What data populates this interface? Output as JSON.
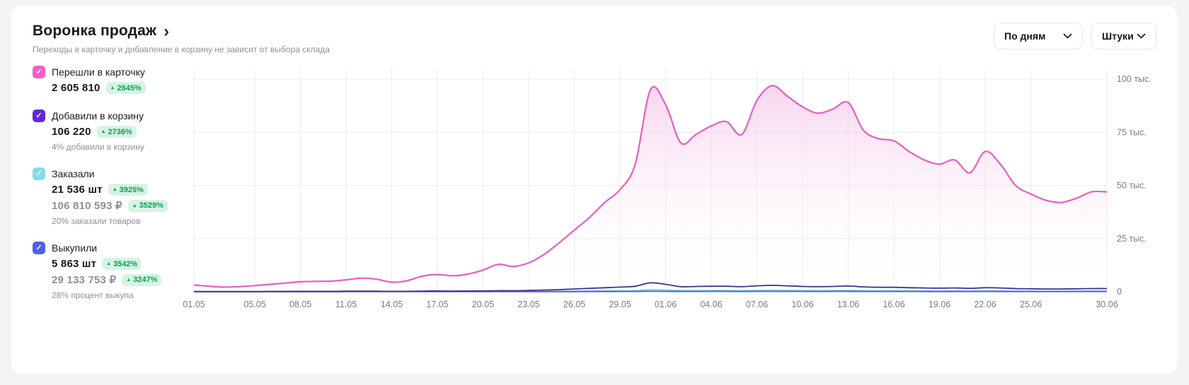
{
  "header": {
    "title": "Воронка продаж",
    "subtitle": "Переходы в карточку и добавление в корзину не зависит от выбора склада"
  },
  "controls": {
    "period_dropdown": "По дням",
    "units_dropdown": "Штуки"
  },
  "icons": {
    "chevron_right": "›",
    "trend_up": "▲",
    "check": "✓"
  },
  "colors": {
    "card_to_product": "#f25fc4",
    "add_to_cart": "#6128d9",
    "ordered": "#86dce6",
    "purchased": "#4e61ea",
    "badge_bg": "#d7f3e3",
    "badge_text": "#0aa05c"
  },
  "legend": {
    "items": [
      {
        "label": "Перешли в карточку",
        "value": "2 605 810",
        "badge": "2645%"
      },
      {
        "label": "Добавили в корзину",
        "value": "106 220",
        "badge": "2736%",
        "note": "4% добавили в корзину"
      },
      {
        "label": "Заказали",
        "value": "21 536 шт",
        "badge": "3925%",
        "value2": "106 810 593 ₽",
        "badge2": "3529%",
        "note": "20% заказали товаров"
      },
      {
        "label": "Выкупили",
        "value": "5 863 шт",
        "badge": "3542%",
        "value2": "29 133 753 ₽",
        "badge2": "3247%",
        "note": "28% процент выкупа"
      }
    ]
  },
  "chart_data": {
    "type": "area",
    "x_unit": "day",
    "x_start": "01.05",
    "x_end": "30.06",
    "x_tick_labels": [
      "01.05",
      "05.05",
      "08.05",
      "11.05",
      "14.05",
      "17.05",
      "20.05",
      "23.05",
      "26.05",
      "29.05",
      "01.06",
      "04.06",
      "07.06",
      "10.06",
      "13.06",
      "16.06",
      "19.06",
      "22.06",
      "25.06",
      "30.06"
    ],
    "x_tick_days": [
      0,
      4,
      7,
      10,
      13,
      16,
      19,
      22,
      25,
      28,
      31,
      34,
      37,
      40,
      43,
      46,
      49,
      52,
      55,
      60
    ],
    "y_ticks": [
      0,
      25,
      50,
      75,
      100
    ],
    "y_tick_labels": [
      "0",
      "25 тыс.",
      "50 тыс.",
      "75 тыс.",
      "100 тыс."
    ],
    "ylim": [
      0,
      105
    ],
    "unit": "тыс.",
    "grid": true,
    "legend_position": "left",
    "series": [
      {
        "name": "Перешли в карточку",
        "color": "#e95ebf",
        "area": "gradient",
        "values": [
          3.2,
          2.6,
          2.2,
          2.4,
          2.9,
          3.5,
          4.1,
          4.7,
          4.9,
          5.0,
          5.6,
          6.4,
          5.9,
          4.5,
          5.2,
          7.3,
          8.1,
          7.5,
          8.3,
          10.2,
          12.9,
          11.9,
          13.6,
          17.5,
          23,
          29,
          35,
          42,
          48,
          60,
          95,
          88,
          70,
          74,
          78,
          80,
          74,
          90,
          97,
          92,
          87,
          84,
          86,
          89,
          76,
          72,
          71,
          66,
          62,
          60,
          62,
          56,
          66,
          60,
          50,
          46,
          43,
          42,
          44,
          47,
          47
        ]
      },
      {
        "name": "Добавили в корзину",
        "color": "#433090",
        "area": "none",
        "values": [
          0.1,
          0.1,
          0.1,
          0.1,
          0.1,
          0.15,
          0.15,
          0.2,
          0.2,
          0.2,
          0.25,
          0.25,
          0.25,
          0.2,
          0.2,
          0.3,
          0.35,
          0.3,
          0.35,
          0.4,
          0.5,
          0.5,
          0.6,
          0.8,
          1.0,
          1.3,
          1.6,
          1.9,
          2.2,
          2.6,
          4.2,
          3.5,
          2.4,
          2.5,
          2.6,
          2.6,
          2.4,
          2.8,
          3.0,
          2.8,
          2.5,
          2.4,
          2.5,
          2.7,
          2.3,
          2.1,
          2.1,
          1.9,
          1.8,
          1.7,
          1.8,
          1.6,
          1.9,
          1.8,
          1.5,
          1.4,
          1.3,
          1.3,
          1.4,
          1.5,
          1.5
        ]
      },
      {
        "name": "Заказали",
        "color": "#62cbdc",
        "area": "solid",
        "fill": "#bce9f1",
        "values": [
          0.03,
          0.03,
          0.03,
          0.03,
          0.03,
          0.04,
          0.04,
          0.05,
          0.05,
          0.05,
          0.06,
          0.06,
          0.06,
          0.05,
          0.05,
          0.07,
          0.08,
          0.07,
          0.08,
          0.1,
          0.12,
          0.12,
          0.15,
          0.2,
          0.25,
          0.3,
          0.4,
          0.45,
          0.5,
          0.6,
          1.0,
          0.85,
          0.6,
          0.6,
          0.62,
          0.62,
          0.58,
          0.68,
          0.72,
          0.68,
          0.6,
          0.58,
          0.6,
          0.65,
          0.55,
          0.5,
          0.5,
          0.46,
          0.43,
          0.41,
          0.43,
          0.39,
          0.45,
          0.43,
          0.36,
          0.33,
          0.31,
          0.31,
          0.33,
          0.36,
          0.36
        ]
      },
      {
        "name": "Выкупили",
        "color": "#4d5fe3",
        "area": "none",
        "values": [
          0.01,
          0.01,
          0.01,
          0.01,
          0.01,
          0.01,
          0.01,
          0.01,
          0.01,
          0.01,
          0.02,
          0.02,
          0.02,
          0.02,
          0.02,
          0.02,
          0.02,
          0.02,
          0.02,
          0.03,
          0.03,
          0.03,
          0.04,
          0.05,
          0.06,
          0.08,
          0.09,
          0.1,
          0.12,
          0.14,
          0.2,
          0.18,
          0.14,
          0.14,
          0.15,
          0.15,
          0.14,
          0.16,
          0.17,
          0.16,
          0.15,
          0.14,
          0.15,
          0.16,
          0.14,
          0.13,
          0.13,
          0.12,
          0.11,
          0.11,
          0.11,
          0.1,
          0.12,
          0.11,
          0.1,
          0.09,
          0.09,
          0.09,
          0.09,
          0.1,
          0.1
        ]
      }
    ]
  }
}
